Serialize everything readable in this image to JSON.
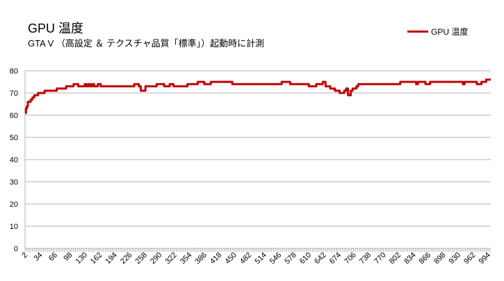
{
  "chart_data": {
    "type": "line",
    "title": "GPU 温度",
    "subtitle": "GTA V （高設定 ＆ テクスチャ品質「標準」）起動時に計測",
    "xlabel": "",
    "ylabel": "",
    "ylim": [
      0,
      80
    ],
    "yticks": [
      0,
      10,
      20,
      30,
      40,
      50,
      60,
      70,
      80
    ],
    "xlim": [
      2,
      1000
    ],
    "xticks": [
      2,
      34,
      66,
      98,
      130,
      162,
      194,
      226,
      258,
      290,
      322,
      354,
      386,
      418,
      450,
      482,
      514,
      546,
      578,
      610,
      642,
      674,
      706,
      738,
      770,
      802,
      834,
      866,
      898,
      930,
      962,
      994
    ],
    "grid": "horizontal",
    "legend": "top-right",
    "series": [
      {
        "name": "GPU 温度",
        "color": "#c00000",
        "x": [
          2,
          4,
          6,
          8,
          10,
          14,
          18,
          22,
          26,
          30,
          34,
          40,
          44,
          50,
          56,
          60,
          66,
          70,
          80,
          84,
          90,
          96,
          100,
          106,
          110,
          116,
          122,
          126,
          130,
          134,
          138,
          142,
          146,
          150,
          154,
          158,
          164,
          170,
          180,
          200,
          220,
          230,
          236,
          240,
          246,
          250,
          260,
          270,
          280,
          284,
          290,
          296,
          300,
          306,
          312,
          320,
          330,
          340,
          350,
          356,
          362,
          366,
          372,
          380,
          386,
          392,
          396,
          400,
          404,
          410,
          420,
          430,
          440,
          446,
          452,
          460,
          470,
          480,
          490,
          500,
          510,
          520,
          540,
          546,
          552,
          560,
          570,
          580,
          590,
          600,
          610,
          614,
          620,
          626,
          636,
          640,
          646,
          650,
          656,
          660,
          666,
          670,
          676,
          680,
          686,
          690,
          694,
          700,
          704,
          708,
          712,
          716,
          720,
          726,
          730,
          736,
          740,
          760,
          790,
          800,
          806,
          820,
          834,
          836,
          840,
          844,
          850,
          860,
          870,
          880,
          900,
          910,
          930,
          936,
          940,
          944,
          950,
          960,
          966,
          970,
          976,
          980,
          986,
          990,
          1000
        ],
        "values": [
          61,
          63,
          64,
          66,
          66,
          67,
          68,
          69,
          69,
          70,
          70,
          70,
          71,
          71,
          71,
          71,
          71,
          72,
          72,
          72,
          73,
          73,
          73,
          74,
          74,
          73,
          73,
          73,
          74,
          73,
          74,
          73,
          74,
          73,
          73,
          74,
          73,
          73,
          73,
          73,
          73,
          73,
          74,
          74,
          73,
          71,
          73,
          73,
          73,
          74,
          74,
          74,
          73,
          73,
          74,
          73,
          73,
          73,
          74,
          74,
          74,
          74,
          75,
          75,
          74,
          74,
          74,
          75,
          75,
          75,
          75,
          75,
          75,
          74,
          74,
          74,
          74,
          74,
          74,
          74,
          74,
          74,
          74,
          74,
          75,
          75,
          74,
          74,
          74,
          74,
          73,
          73,
          73,
          74,
          74,
          75,
          73,
          73,
          72,
          72,
          71,
          71,
          70,
          70,
          71,
          72,
          69,
          71,
          72,
          72,
          73,
          74,
          74,
          74,
          74,
          74,
          74,
          74,
          74,
          74,
          75,
          75,
          75,
          75,
          74,
          75,
          75,
          74,
          75,
          75,
          75,
          75,
          75,
          75,
          74,
          75,
          75,
          75,
          75,
          74,
          74,
          75,
          75,
          76,
          76
        ]
      }
    ]
  }
}
